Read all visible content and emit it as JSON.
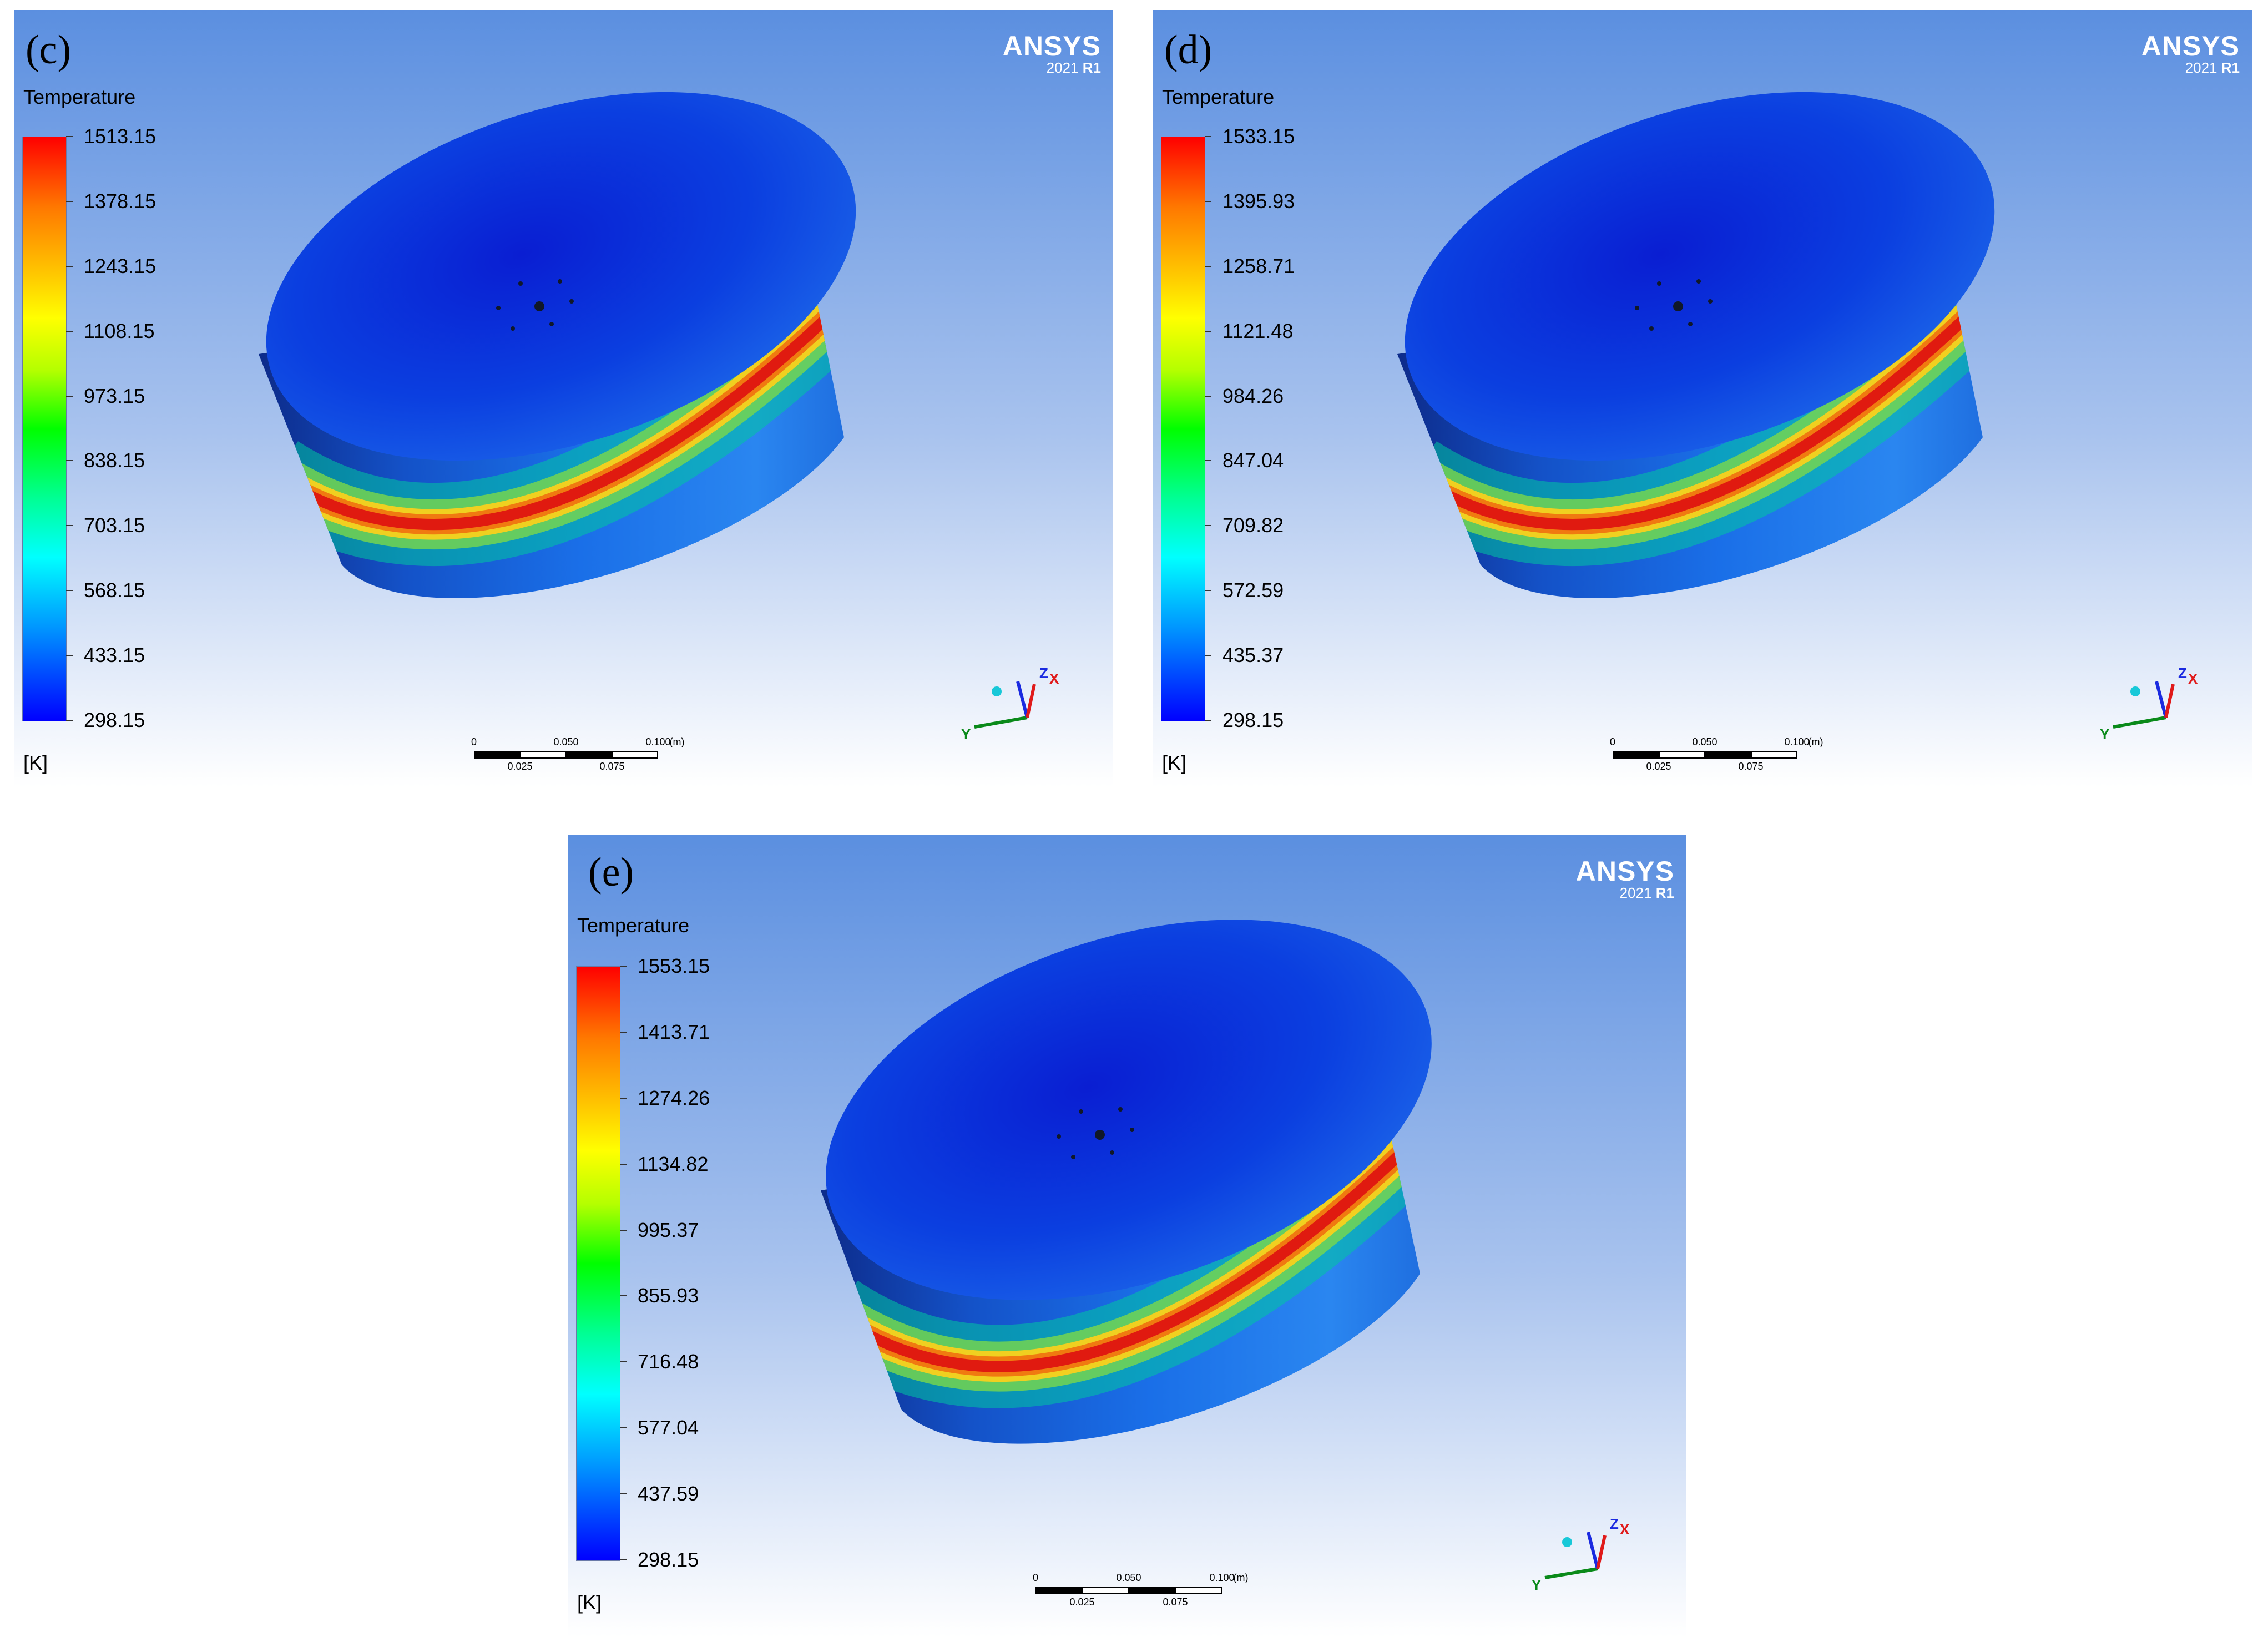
{
  "panels": [
    {
      "id": "c",
      "label": "(c)",
      "title": "Temperature",
      "unit": "[K]",
      "logo": {
        "brand": "ANSYS",
        "version": "2021",
        "release": "R1"
      },
      "colorbar_ticks": [
        "1513.15",
        "1378.15",
        "1243.15",
        "1108.15",
        "973.15",
        "838.15",
        "703.15",
        "568.15",
        "433.15",
        "298.15"
      ],
      "scale_top": [
        "0",
        "0.050",
        "0.100",
        "(m)"
      ],
      "scale_bottom": [
        "0.025",
        "0.075"
      ],
      "axes": [
        "Z",
        "X",
        "Y"
      ]
    },
    {
      "id": "d",
      "label": "(d)",
      "title": "Temperature",
      "unit": "[K]",
      "logo": {
        "brand": "ANSYS",
        "version": "2021",
        "release": "R1"
      },
      "colorbar_ticks": [
        "1533.15",
        "1395.93",
        "1258.71",
        "1121.48",
        "984.26",
        "847.04",
        "709.82",
        "572.59",
        "435.37",
        "298.15"
      ],
      "scale_top": [
        "0",
        "0.050",
        "0.100",
        "(m)"
      ],
      "scale_bottom": [
        "0.025",
        "0.075"
      ],
      "axes": [
        "Z",
        "X",
        "Y"
      ]
    },
    {
      "id": "e",
      "label": "(e)",
      "title": "Temperature",
      "unit": "[K]",
      "logo": {
        "brand": "ANSYS",
        "version": "2021",
        "release": "R1"
      },
      "colorbar_ticks": [
        "1553.15",
        "1413.71",
        "1274.26",
        "1134.82",
        "995.37",
        "855.93",
        "716.48",
        "577.04",
        "437.59",
        "298.15"
      ],
      "scale_top": [
        "0",
        "0.050",
        "0.100",
        "(m)"
      ],
      "scale_bottom": [
        "0.025",
        "0.075"
      ],
      "axes": [
        "Z",
        "X",
        "Y"
      ]
    }
  ],
  "colors": {
    "background_top": "#5b8fe0",
    "background_bottom": "#ffffff",
    "hot_band": "#e01a10",
    "body_blue": "#1460e6",
    "top_face_center": "#0a1ed2"
  }
}
